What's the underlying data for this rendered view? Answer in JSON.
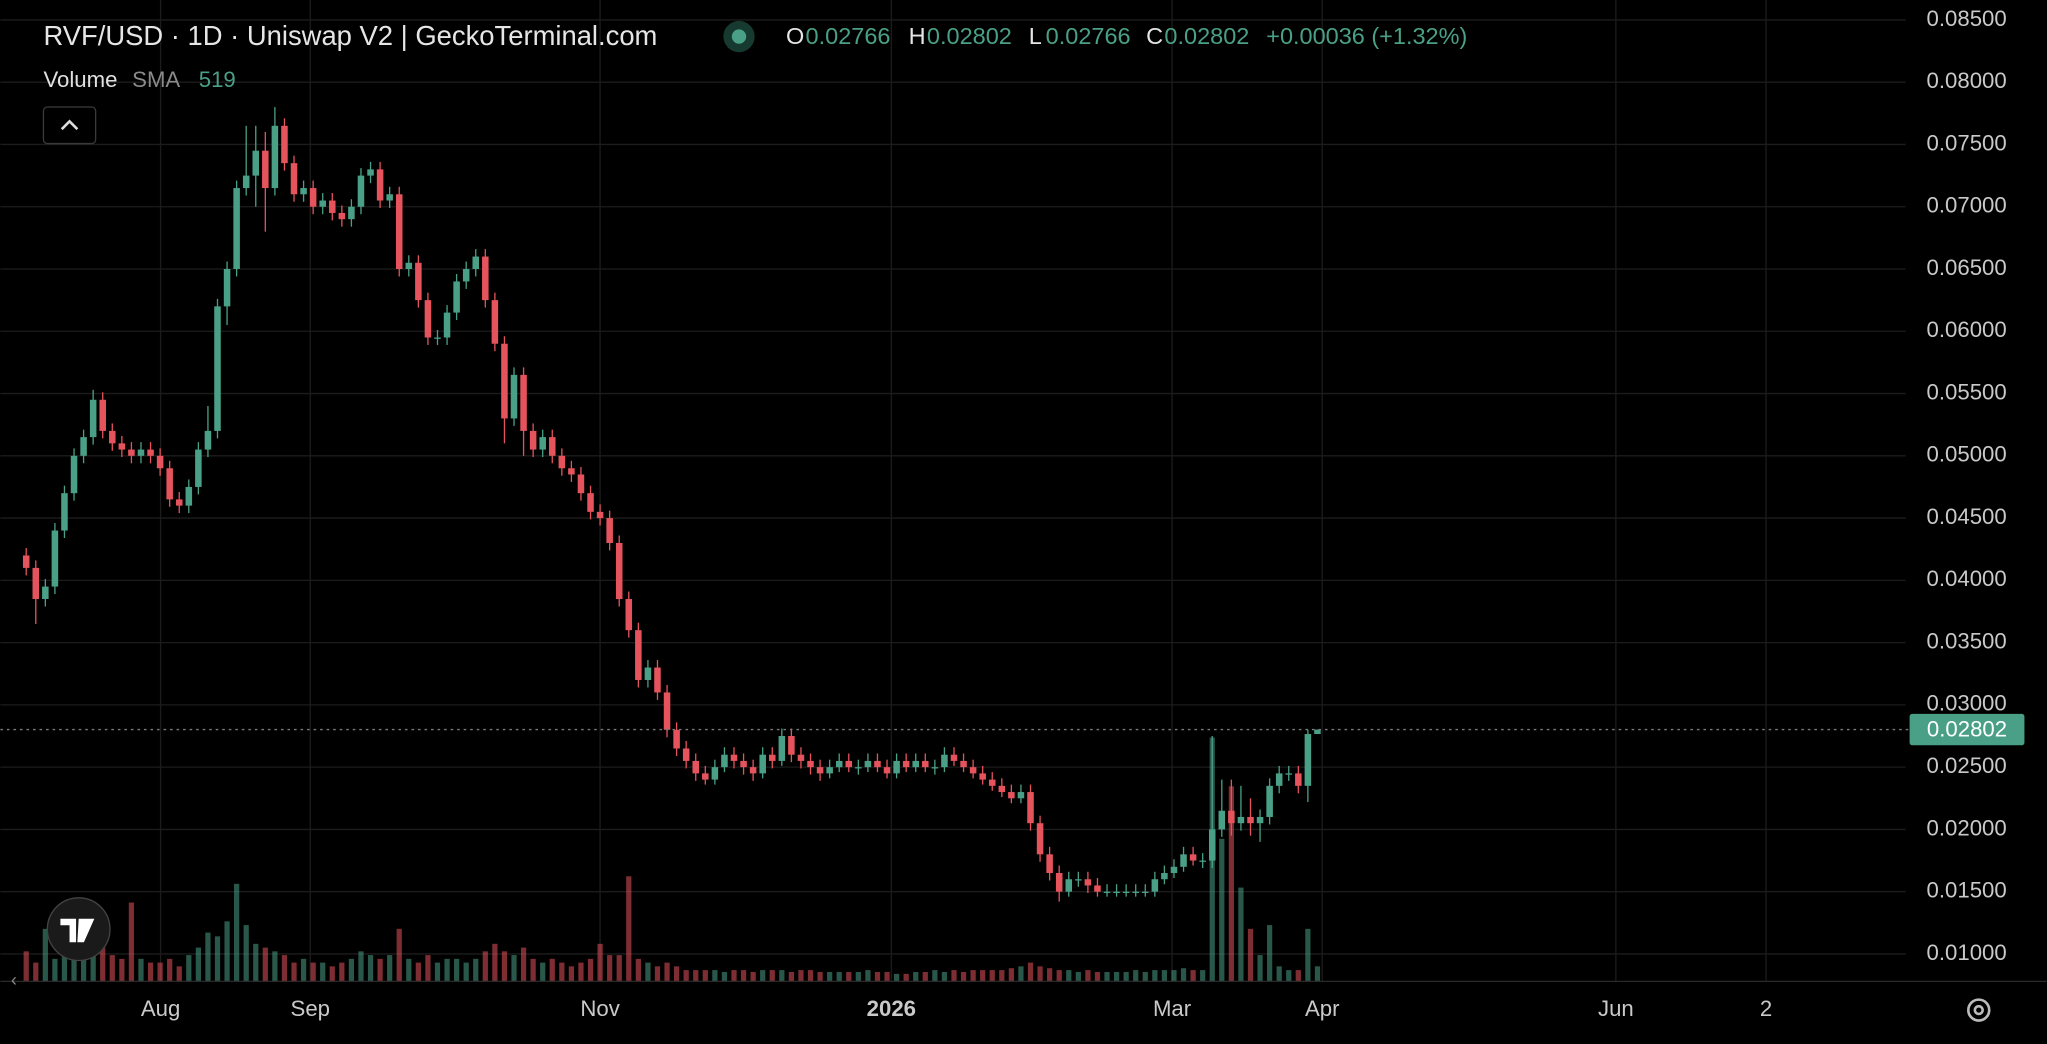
{
  "chart_data": {
    "type": "candlestick",
    "title": "RVF/USD · 1D · Uniswap V2 | GeckoTerminal.com",
    "legend": {
      "o": "O",
      "h": "H",
      "l": "L",
      "c": "C",
      "change": "+0.00036 (+1.32%)"
    },
    "volume_label": "Volume",
    "sma_label": "SMA",
    "sma_value": 519,
    "up_color": "#4aa086",
    "down_color": "#e5535c",
    "open": [
      0.042,
      0.041,
      0.0385,
      0.0395,
      0.044,
      0.047,
      0.05,
      0.0515,
      0.0545,
      0.052,
      0.051,
      0.0505,
      0.05,
      0.0505,
      0.05,
      0.049,
      0.0465,
      0.046,
      0.0475,
      0.0505,
      0.052,
      0.062,
      0.065,
      0.0715,
      0.0725,
      0.0745,
      0.0715,
      0.0765,
      0.0735,
      0.071,
      0.0715,
      0.07,
      0.0705,
      0.0695,
      0.069,
      0.07,
      0.0725,
      0.073,
      0.0705,
      0.071,
      0.065,
      0.0655,
      0.0625,
      0.0595,
      0.0595,
      0.0615,
      0.064,
      0.065,
      0.066,
      0.0625,
      0.059,
      0.053,
      0.0565,
      0.052,
      0.0505,
      0.0515,
      0.05,
      0.049,
      0.0485,
      0.047,
      0.0455,
      0.045,
      0.043,
      0.0385,
      0.036,
      0.032,
      0.033,
      0.031,
      0.028,
      0.0265,
      0.0255,
      0.0245,
      0.024,
      0.025,
      0.026,
      0.0255,
      0.025,
      0.0245,
      0.026,
      0.0255,
      0.0275,
      0.026,
      0.0255,
      0.025,
      0.0245,
      0.025,
      0.0255,
      0.025,
      0.025,
      0.0255,
      0.025,
      0.0245,
      0.0255,
      0.025,
      0.0255,
      0.025,
      0.025,
      0.026,
      0.0255,
      0.025,
      0.0245,
      0.024,
      0.0235,
      0.023,
      0.0225,
      0.023,
      0.0205,
      0.018,
      0.0165,
      0.015,
      0.016,
      0.016,
      0.0155,
      0.015,
      0.015,
      0.015,
      0.015,
      0.015,
      0.015,
      0.016,
      0.0165,
      0.017,
      0.018,
      0.0175,
      0.0175,
      0.02,
      0.0215,
      0.0205,
      0.021,
      0.0205,
      0.021,
      0.0235,
      0.0245,
      0.0245,
      0.0235,
      0.02766
    ],
    "high": [
      0.0426,
      0.0416,
      0.0401,
      0.0446,
      0.0476,
      0.0506,
      0.0521,
      0.0553,
      0.0551,
      0.0526,
      0.0516,
      0.0511,
      0.0511,
      0.0511,
      0.0506,
      0.0496,
      0.0471,
      0.0481,
      0.0511,
      0.054,
      0.0626,
      0.0656,
      0.0721,
      0.0765,
      0.0765,
      0.076,
      0.078,
      0.0771,
      0.0741,
      0.0721,
      0.0721,
      0.0711,
      0.0711,
      0.0701,
      0.0706,
      0.0731,
      0.0736,
      0.0736,
      0.0716,
      0.0716,
      0.0661,
      0.0661,
      0.0631,
      0.0601,
      0.0621,
      0.0646,
      0.0656,
      0.0666,
      0.0666,
      0.0631,
      0.0596,
      0.0571,
      0.0571,
      0.0526,
      0.0521,
      0.0521,
      0.0506,
      0.0496,
      0.0491,
      0.0476,
      0.0461,
      0.0456,
      0.0436,
      0.0391,
      0.0366,
      0.0336,
      0.0336,
      0.0316,
      0.0286,
      0.0271,
      0.0261,
      0.0251,
      0.0256,
      0.0266,
      0.0266,
      0.0261,
      0.0256,
      0.0266,
      0.0266,
      0.0281,
      0.0281,
      0.0266,
      0.0261,
      0.0256,
      0.0256,
      0.0261,
      0.0261,
      0.0256,
      0.0261,
      0.0261,
      0.0256,
      0.0261,
      0.0261,
      0.0261,
      0.0261,
      0.0256,
      0.0266,
      0.0266,
      0.0261,
      0.0256,
      0.0251,
      0.0246,
      0.0241,
      0.0236,
      0.0236,
      0.0236,
      0.0211,
      0.0186,
      0.0171,
      0.0166,
      0.0166,
      0.0166,
      0.0161,
      0.0156,
      0.0156,
      0.0156,
      0.0156,
      0.0156,
      0.0166,
      0.0171,
      0.0176,
      0.0186,
      0.0186,
      0.0181,
      0.0275,
      0.024,
      0.024,
      0.0235,
      0.0225,
      0.0216,
      0.0241,
      0.0251,
      0.0251,
      0.0251,
      0.028,
      0.02802
    ],
    "low": [
      0.0404,
      0.0365,
      0.0379,
      0.0389,
      0.0434,
      0.0464,
      0.0494,
      0.0509,
      0.0514,
      0.0504,
      0.0499,
      0.0494,
      0.0494,
      0.0494,
      0.0484,
      0.0459,
      0.0454,
      0.0454,
      0.0469,
      0.0499,
      0.0514,
      0.0605,
      0.0644,
      0.0709,
      0.07,
      0.068,
      0.0709,
      0.0729,
      0.0704,
      0.0704,
      0.0694,
      0.0694,
      0.0689,
      0.0684,
      0.0684,
      0.0694,
      0.0719,
      0.0699,
      0.0699,
      0.0644,
      0.0644,
      0.0619,
      0.0589,
      0.0589,
      0.0589,
      0.0609,
      0.0634,
      0.0644,
      0.0619,
      0.0584,
      0.051,
      0.0524,
      0.05,
      0.0499,
      0.0499,
      0.0494,
      0.0484,
      0.0479,
      0.0464,
      0.0449,
      0.0444,
      0.0424,
      0.0379,
      0.0354,
      0.0314,
      0.0314,
      0.0304,
      0.0274,
      0.0259,
      0.0249,
      0.0239,
      0.0236,
      0.0236,
      0.0246,
      0.0249,
      0.0244,
      0.0239,
      0.0241,
      0.0249,
      0.0251,
      0.0254,
      0.0249,
      0.0244,
      0.0239,
      0.0241,
      0.0246,
      0.0246,
      0.0244,
      0.0246,
      0.0246,
      0.0241,
      0.0241,
      0.0246,
      0.0246,
      0.0246,
      0.0244,
      0.0246,
      0.0251,
      0.0246,
      0.0241,
      0.0236,
      0.0231,
      0.0226,
      0.0221,
      0.0221,
      0.0199,
      0.0174,
      0.0159,
      0.0142,
      0.0146,
      0.0154,
      0.0149,
      0.0146,
      0.0146,
      0.0146,
      0.0146,
      0.0146,
      0.0146,
      0.0146,
      0.0156,
      0.0161,
      0.0166,
      0.0171,
      0.0169,
      0.0169,
      0.0194,
      0.0195,
      0.0199,
      0.0195,
      0.019,
      0.0204,
      0.0229,
      0.0239,
      0.0229,
      0.0222,
      0.02766
    ],
    "close": [
      0.041,
      0.0385,
      0.0395,
      0.044,
      0.047,
      0.05,
      0.0515,
      0.0545,
      0.052,
      0.051,
      0.0505,
      0.05,
      0.0505,
      0.05,
      0.049,
      0.0465,
      0.046,
      0.0475,
      0.0505,
      0.052,
      0.062,
      0.065,
      0.0715,
      0.0725,
      0.0745,
      0.0715,
      0.0765,
      0.0735,
      0.071,
      0.0715,
      0.07,
      0.0705,
      0.0695,
      0.069,
      0.07,
      0.0725,
      0.073,
      0.0705,
      0.071,
      0.065,
      0.0655,
      0.0625,
      0.0595,
      0.0595,
      0.0615,
      0.064,
      0.065,
      0.066,
      0.0625,
      0.059,
      0.053,
      0.0565,
      0.052,
      0.0505,
      0.0515,
      0.05,
      0.049,
      0.0485,
      0.047,
      0.0455,
      0.045,
      0.043,
      0.0385,
      0.036,
      0.032,
      0.033,
      0.031,
      0.028,
      0.0265,
      0.0255,
      0.0245,
      0.024,
      0.025,
      0.026,
      0.0255,
      0.025,
      0.0245,
      0.026,
      0.0255,
      0.0275,
      0.026,
      0.0255,
      0.025,
      0.0245,
      0.025,
      0.0255,
      0.025,
      0.025,
      0.0255,
      0.025,
      0.0245,
      0.0255,
      0.025,
      0.0255,
      0.025,
      0.025,
      0.026,
      0.0255,
      0.025,
      0.0245,
      0.024,
      0.0235,
      0.023,
      0.0225,
      0.023,
      0.0205,
      0.018,
      0.0165,
      0.015,
      0.016,
      0.016,
      0.0155,
      0.015,
      0.015,
      0.015,
      0.015,
      0.015,
      0.015,
      0.016,
      0.0165,
      0.017,
      0.018,
      0.0175,
      0.0175,
      0.02,
      0.0215,
      0.0205,
      0.021,
      0.0205,
      0.021,
      0.0235,
      0.0245,
      0.0245,
      0.0235,
      0.02766,
      0.02802
    ],
    "volume": [
      800,
      500,
      1400,
      600,
      700,
      900,
      700,
      2000,
      900,
      700,
      600,
      2100,
      600,
      500,
      500,
      600,
      400,
      700,
      900,
      1300,
      1200,
      1600,
      2600,
      1500,
      1000,
      900,
      800,
      700,
      500,
      600,
      500,
      500,
      400,
      500,
      600,
      800,
      700,
      600,
      700,
      1400,
      600,
      500,
      700,
      500,
      600,
      600,
      500,
      600,
      800,
      1000,
      800,
      700,
      900,
      600,
      500,
      600,
      500,
      400,
      500,
      600,
      1000,
      700,
      700,
      2800,
      600,
      500,
      400,
      500,
      400,
      300,
      300,
      300,
      300,
      250,
      300,
      300,
      250,
      300,
      300,
      300,
      250,
      300,
      300,
      250,
      250,
      250,
      250,
      250,
      300,
      250,
      250,
      200,
      200,
      250,
      250,
      300,
      250,
      300,
      250,
      300,
      300,
      300,
      300,
      350,
      400,
      500,
      400,
      350,
      300,
      300,
      250,
      300,
      250,
      250,
      250,
      250,
      300,
      250,
      300,
      300,
      300,
      350,
      300,
      300,
      6500,
      3800,
      5200,
      2500,
      1400,
      700,
      1500,
      400,
      300,
      300,
      1400,
      400
    ],
    "vlim": [
      0,
      8000
    ],
    "xlim": [
      -2.7,
      196.5
    ],
    "xticks": [
      {
        "value": 14.05,
        "label": "Aug"
      },
      {
        "value": 29.7,
        "label": "Sep"
      },
      {
        "value": 60.0,
        "label": "Nov"
      },
      {
        "value": 90.45,
        "label": "2026"
      },
      {
        "value": 119.8,
        "label": "Mar"
      },
      {
        "value": 135.5,
        "label": "Apr"
      },
      {
        "value": 166.2,
        "label": "Jun"
      },
      {
        "value": 181.9,
        "label": "2"
      }
    ],
    "ylim": [
      0.0078,
      0.0866
    ],
    "yticks": [
      {
        "value": 0.085,
        "label": "0.08500"
      },
      {
        "value": 0.08,
        "label": "0.08000"
      },
      {
        "value": 0.075,
        "label": "0.07500"
      },
      {
        "value": 0.07,
        "label": "0.07000"
      },
      {
        "value": 0.065,
        "label": "0.06500"
      },
      {
        "value": 0.06,
        "label": "0.06000"
      },
      {
        "value": 0.055,
        "label": "0.05500"
      },
      {
        "value": 0.05,
        "label": "0.05000"
      },
      {
        "value": 0.045,
        "label": "0.04500"
      },
      {
        "value": 0.04,
        "label": "0.04000"
      },
      {
        "value": 0.035,
        "label": "0.03500"
      },
      {
        "value": 0.03,
        "label": "0.03000"
      },
      {
        "value": 0.025,
        "label": "0.02500"
      },
      {
        "value": 0.02,
        "label": "0.02000"
      },
      {
        "value": 0.015,
        "label": "0.01500"
      },
      {
        "value": 0.01,
        "label": "0.01000"
      }
    ],
    "grid": true
  }
}
